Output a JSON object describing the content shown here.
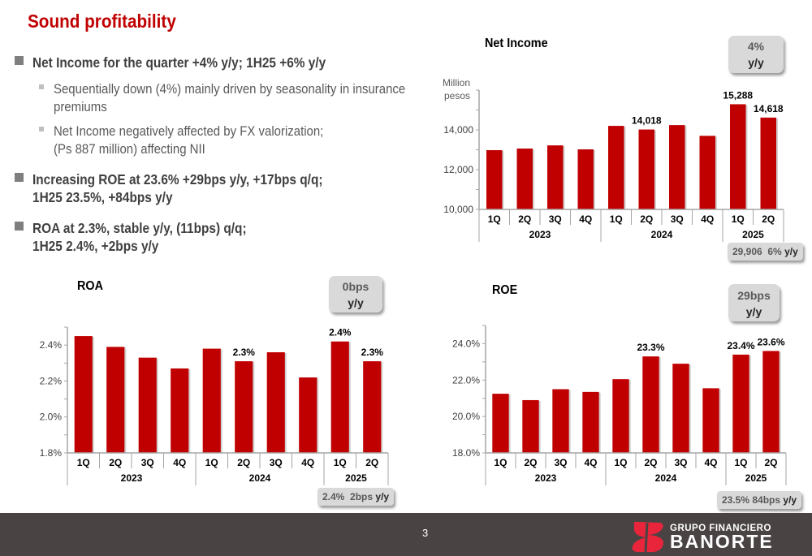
{
  "title": "Sound profitability",
  "bullets": [
    {
      "text": "Net Income for the quarter +4% y/y; 1H25 +6% y/y",
      "sub": [
        {
          "lines": [
            "Sequentially down (4%) mainly driven by seasonality in insurance",
            "premiums"
          ]
        },
        {
          "lines": [
            "Net Income negatively affected by FX valorization;",
            "(Ps 887 million) affecting NII"
          ]
        }
      ]
    },
    {
      "lines": [
        "Increasing ROE at 23.6% +29bps y/y, +17bps q/q;",
        "1H25 23.5%, +84bps y/y"
      ]
    },
    {
      "lines": [
        "ROA at 2.3%, stable y/y, (11bps) q/q;",
        "1H25 2.4%, +2bps y/y"
      ]
    }
  ],
  "colors": {
    "bar": "#c00000",
    "title": "#c00000",
    "badge": "#d9d9d9",
    "footer": "#4a4344"
  },
  "footer": {
    "page": "3",
    "logo_line1": "GRUPO FINANCIERO",
    "logo_line2": "BANORTE"
  },
  "chart_data": [
    {
      "type": "bar",
      "title": "Net Income",
      "ylabel": "Million pesos",
      "categories": [
        "1Q",
        "2Q",
        "3Q",
        "4Q",
        "1Q",
        "2Q",
        "3Q",
        "4Q",
        "1Q",
        "2Q"
      ],
      "groups": [
        {
          "label": "2023",
          "count": 4
        },
        {
          "label": "2024",
          "count": 4
        },
        {
          "label": "2025",
          "count": 2
        }
      ],
      "values": [
        12980,
        13060,
        13220,
        13020,
        14200,
        14018,
        14240,
        13700,
        15288,
        14618
      ],
      "data_labels": [
        null,
        null,
        null,
        null,
        null,
        "14,018",
        null,
        null,
        "15,288",
        "14,618"
      ],
      "ylim": [
        10000,
        16000
      ],
      "yticks": [
        10000,
        12000,
        14000
      ],
      "ytick_labels": [
        "10,000",
        "12,000",
        "14,000"
      ],
      "badge": {
        "value": "4%",
        "unit": "y/y"
      },
      "note": {
        "value": "29,906",
        "change": "6%",
        "unit": "y/y"
      }
    },
    {
      "type": "bar",
      "title": "ROA",
      "categories": [
        "1Q",
        "2Q",
        "3Q",
        "4Q",
        "1Q",
        "2Q",
        "3Q",
        "4Q",
        "1Q",
        "2Q"
      ],
      "groups": [
        {
          "label": "2023",
          "count": 4
        },
        {
          "label": "2024",
          "count": 4
        },
        {
          "label": "2025",
          "count": 2
        }
      ],
      "values": [
        2.45,
        2.39,
        2.33,
        2.27,
        2.38,
        2.31,
        2.36,
        2.22,
        2.42,
        2.31
      ],
      "data_labels": [
        null,
        null,
        null,
        null,
        null,
        "2.3%",
        null,
        null,
        "2.4%",
        "2.3%"
      ],
      "ylim": [
        1.8,
        2.5
      ],
      "yticks": [
        1.8,
        2.0,
        2.2,
        2.4
      ],
      "ytick_labels": [
        "1.8%",
        "2.0%",
        "2.2%",
        "2.4%"
      ],
      "badge": {
        "value": "0bps",
        "unit": "y/y"
      },
      "note": {
        "value": "2.4%",
        "change": "2bps",
        "unit": "y/y"
      }
    },
    {
      "type": "bar",
      "title": "ROE",
      "categories": [
        "1Q",
        "2Q",
        "3Q",
        "4Q",
        "1Q",
        "2Q",
        "3Q",
        "4Q",
        "1Q",
        "2Q"
      ],
      "groups": [
        {
          "label": "2023",
          "count": 4
        },
        {
          "label": "2024",
          "count": 4
        },
        {
          "label": "2025",
          "count": 2
        }
      ],
      "values": [
        21.25,
        20.9,
        21.5,
        21.35,
        22.05,
        23.3,
        22.9,
        21.55,
        23.4,
        23.6
      ],
      "data_labels": [
        null,
        null,
        null,
        null,
        null,
        "23.3%",
        null,
        null,
        "23.4%",
        "23.6%"
      ],
      "ylim": [
        18,
        25
      ],
      "yticks": [
        18,
        20,
        22,
        24
      ],
      "ytick_labels": [
        "18.0%",
        "20.0%",
        "22.0%",
        "24.0%"
      ],
      "badge": {
        "value": "29bps",
        "unit": "y/y"
      },
      "note": {
        "value": "23.5%",
        "change": "84bps",
        "unit": "y/y"
      }
    }
  ]
}
